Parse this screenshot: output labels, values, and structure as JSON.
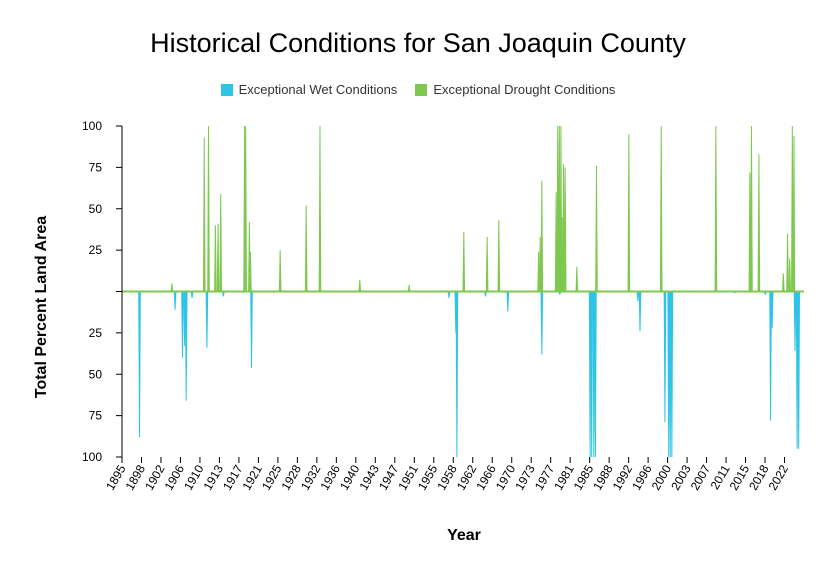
{
  "colors": {
    "wet": "#2ec4e6",
    "drought": "#7ec850",
    "axis": "#000000"
  },
  "chart_data": {
    "type": "area",
    "title": "Historical Conditions for San Joaquin County",
    "xlabel": "Year",
    "ylabel": "Total Percent Land Area",
    "xlim": [
      1895,
      2023.5
    ],
    "ylim": [
      -100,
      100
    ],
    "x_ticks": [
      "1895",
      "1898",
      "1902",
      "1906",
      "1910",
      "1913",
      "1917",
      "1921",
      "1925",
      "1928",
      "1932",
      "1936",
      "1940",
      "1943",
      "1947",
      "1951",
      "1955",
      "1958",
      "1962",
      "1966",
      "1970",
      "1973",
      "1977",
      "1981",
      "1985",
      "1988",
      "1992",
      "1996",
      "2000",
      "2003",
      "2007",
      "2011",
      "2015",
      "2018",
      "2022"
    ],
    "y_ticks": [
      {
        "value": 100,
        "label": "100"
      },
      {
        "value": 75,
        "label": "75"
      },
      {
        "value": 50,
        "label": "50"
      },
      {
        "value": 25,
        "label": "25"
      },
      {
        "value": 0,
        "label": ""
      },
      {
        "value": -25,
        "label": "25"
      },
      {
        "value": -50,
        "label": "50"
      },
      {
        "value": -75,
        "label": "75"
      },
      {
        "value": -100,
        "label": "100"
      }
    ],
    "legend_position": "top",
    "series": [
      {
        "name": "Exceptional Wet Conditions",
        "key": "wet",
        "spikes": [
          [
            1898.3,
            88
          ],
          [
            1905.0,
            11
          ],
          [
            1906.4,
            40
          ],
          [
            1906.8,
            33
          ],
          [
            1907.1,
            66
          ],
          [
            1908.2,
            4
          ],
          [
            1911.0,
            34
          ],
          [
            1914.1,
            3
          ],
          [
            1919.4,
            46
          ],
          [
            1956.6,
            4
          ],
          [
            1957.9,
            25
          ],
          [
            1958.1,
            100
          ],
          [
            1963.5,
            3
          ],
          [
            1967.7,
            12
          ],
          [
            1974.1,
            38
          ],
          [
            1977.5,
            2
          ],
          [
            1983.2,
            100
          ],
          [
            1983.5,
            100
          ],
          [
            1983.9,
            100
          ],
          [
            1984.2,
            100
          ],
          [
            1992.2,
            6
          ],
          [
            1992.6,
            24
          ],
          [
            1997.3,
            79
          ],
          [
            1998.0,
            100
          ],
          [
            1998.3,
            100
          ],
          [
            1998.6,
            100
          ],
          [
            2010.5,
            1
          ],
          [
            2016.2,
            2
          ],
          [
            2017.2,
            78
          ],
          [
            2017.5,
            22
          ],
          [
            2021.8,
            36
          ],
          [
            2022.2,
            95
          ],
          [
            2022.5,
            95
          ]
        ]
      },
      {
        "name": "Exceptional Drought Conditions",
        "key": "drought",
        "spikes": [
          [
            1904.4,
            5
          ],
          [
            1910.5,
            93
          ],
          [
            1911.3,
            100
          ],
          [
            1912.6,
            40
          ],
          [
            1913.1,
            41
          ],
          [
            1913.6,
            59
          ],
          [
            1918.1,
            100
          ],
          [
            1918.3,
            100
          ],
          [
            1919.0,
            42
          ],
          [
            1919.2,
            24
          ],
          [
            1924.8,
            25
          ],
          [
            1929.7,
            52
          ],
          [
            1932.3,
            100
          ],
          [
            1939.8,
            7
          ],
          [
            1949.1,
            4
          ],
          [
            1959.4,
            36
          ],
          [
            1963.8,
            33
          ],
          [
            1966.0,
            43
          ],
          [
            1973.5,
            24
          ],
          [
            1973.8,
            33
          ],
          [
            1974.1,
            67
          ],
          [
            1976.8,
            60
          ],
          [
            1977.1,
            100
          ],
          [
            1977.4,
            100
          ],
          [
            1977.7,
            100
          ],
          [
            1977.9,
            45
          ],
          [
            1978.2,
            77
          ],
          [
            1978.5,
            75
          ],
          [
            1980.7,
            15
          ],
          [
            1984.4,
            76
          ],
          [
            1990.5,
            95
          ],
          [
            1996.6,
            100
          ],
          [
            2006.9,
            100
          ],
          [
            2013.3,
            72
          ],
          [
            2013.6,
            100
          ],
          [
            2015.0,
            83
          ],
          [
            2019.6,
            11
          ],
          [
            2020.4,
            35
          ],
          [
            2020.8,
            20
          ],
          [
            2021.3,
            100
          ],
          [
            2021.6,
            94
          ]
        ]
      }
    ]
  }
}
